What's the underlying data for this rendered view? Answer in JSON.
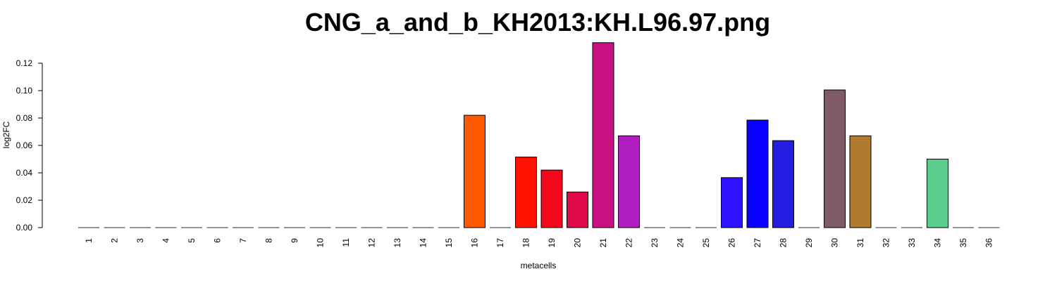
{
  "chart_data": {
    "type": "bar",
    "title": "CNG_a_and_b_KH2013:KH.L96.97.png",
    "xlabel": "metacells",
    "ylabel": "log2FC",
    "ylim": [
      0,
      0.135
    ],
    "yticks": [
      "0.00",
      "0.02",
      "0.04",
      "0.06",
      "0.08",
      "0.10",
      "0.12"
    ],
    "grid": false,
    "categories": [
      "1",
      "2",
      "3",
      "4",
      "5",
      "6",
      "7",
      "8",
      "9",
      "10",
      "11",
      "12",
      "13",
      "14",
      "15",
      "16",
      "17",
      "18",
      "19",
      "20",
      "21",
      "22",
      "23",
      "24",
      "25",
      "26",
      "27",
      "28",
      "29",
      "30",
      "31",
      "32",
      "33",
      "34",
      "35",
      "36"
    ],
    "values": [
      0,
      0,
      0,
      0,
      0,
      0,
      0,
      0,
      0,
      0,
      0,
      0,
      0,
      0,
      0,
      0.082,
      0,
      0.0515,
      0.042,
      0.026,
      0.135,
      0.067,
      0,
      0,
      0,
      0.0365,
      0.0785,
      0.0635,
      0,
      0.1005,
      0.067,
      0,
      0,
      0.05,
      0,
      0
    ],
    "colors": [
      "#cccccc",
      "#cccccc",
      "#cccccc",
      "#cccccc",
      "#cccccc",
      "#cccccc",
      "#cccccc",
      "#cccccc",
      "#cccccc",
      "#cccccc",
      "#cccccc",
      "#cccccc",
      "#cccccc",
      "#cccccc",
      "#cccccc",
      "#ff5a00",
      "#cccccc",
      "#ff1200",
      "#f5081c",
      "#e00a4a",
      "#c91183",
      "#b11ec0",
      "#cccccc",
      "#cccccc",
      "#cccccc",
      "#2f12ff",
      "#0800ff",
      "#251cdf",
      "#cccccc",
      "#7f5b66",
      "#b17c2f",
      "#cccccc",
      "#cccccc",
      "#5acd8f",
      "#cccccc",
      "#cccccc"
    ]
  }
}
